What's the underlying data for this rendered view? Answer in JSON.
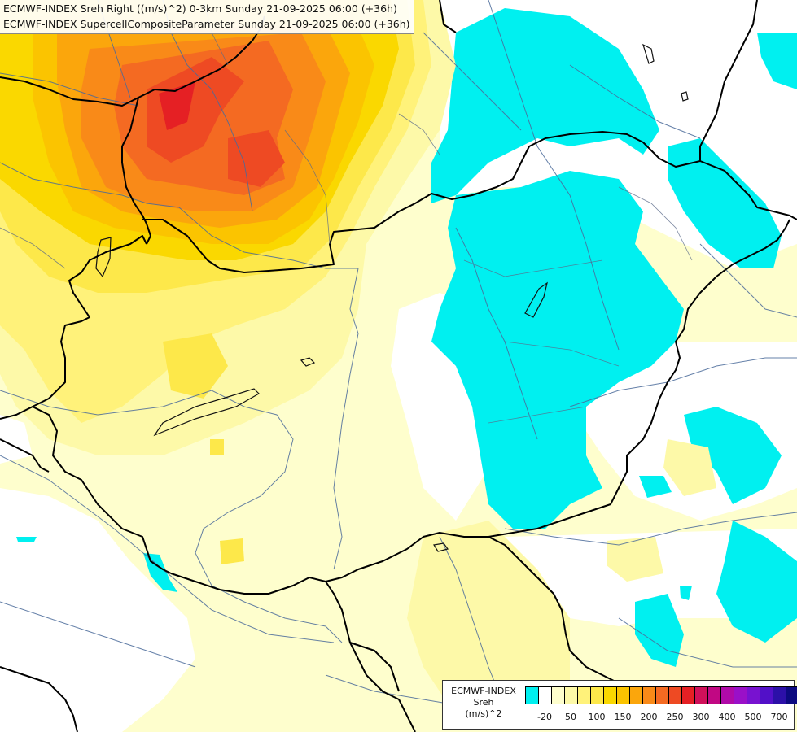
{
  "titles": [
    "ECMWF-INDEX Sreh Right ((m/s)^2) 0-3km Sunday 21-09-2025 06:00 (+36h)",
    "ECMWF-INDEX SupercellCompositeParameter Sunday 21-09-2025 06:00 (+36h)"
  ],
  "legend": {
    "title_lines": [
      "ECMWF-INDEX",
      "Sreh",
      "(m/s)^2"
    ],
    "colors": [
      "#00f0f0",
      "#ffffff",
      "#fefecd",
      "#fdf9a8",
      "#fff27a",
      "#fde84a",
      "#fad800",
      "#fbc400",
      "#fba60c",
      "#f98a18",
      "#f46a22",
      "#ee4a23",
      "#e52024",
      "#d0105a",
      "#c10883",
      "#b00aa8",
      "#9a10c8",
      "#7812d0",
      "#5210c8",
      "#2c10a8",
      "#0c0a80"
    ],
    "tick_labels": [
      "-20",
      "50",
      "100",
      "150",
      "200",
      "250",
      "300",
      "400",
      "500",
      "700"
    ]
  }
}
